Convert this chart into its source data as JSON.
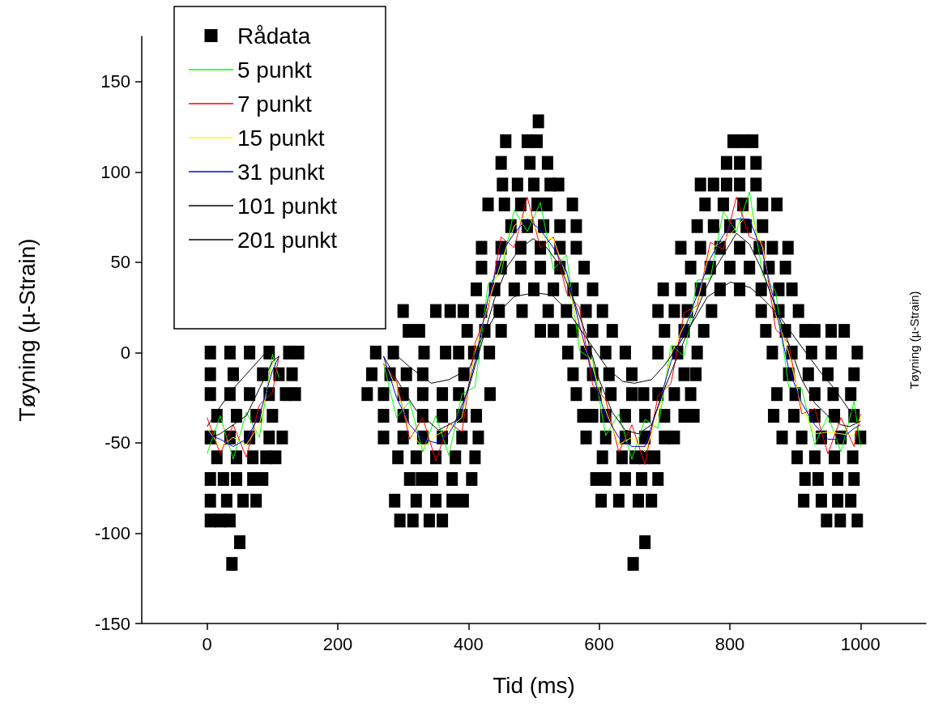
{
  "chart_data": {
    "type": "line",
    "xlabel": "Tid (ms)",
    "ylabel": "Tøyning (µ-Strain)",
    "y2label": "Tøyning (µ-Strain)",
    "xlim": [
      -100,
      1100
    ],
    "xticks": [
      0,
      200,
      400,
      600,
      800,
      1000
    ],
    "ylim": [
      -150,
      175
    ],
    "yticks": [
      -150,
      -100,
      -50,
      0,
      50,
      100,
      150
    ],
    "grid": false,
    "legend": "top left",
    "marker": "none",
    "series": [
      {
        "name": "Rådata",
        "type": "scatter",
        "marker": "square",
        "color": "#000000",
        "x": [
          507,
          457,
          490,
          505,
          805,
          820,
          835,
          450,
          494,
          521,
          795,
          815,
          840,
          452,
          475,
          500,
          525,
          538,
          755,
          775,
          795,
          815,
          840,
          430,
          455,
          480,
          505,
          520,
          559,
          762,
          790,
          820,
          850,
          872,
          465,
          490,
          515,
          540,
          565,
          750,
          775,
          800,
          825,
          850,
          420,
          450,
          480,
          510,
          540,
          565,
          725,
          755,
          785,
          815,
          845,
          865,
          889,
          420,
          450,
          480,
          510,
          540,
          577,
          740,
          770,
          800,
          830,
          860,
          885,
          412,
          440,
          470,
          500,
          530,
          560,
          590,
          698,
          725,
          755,
          785,
          815,
          848,
          875,
          895,
          300,
          350,
          372,
          392,
          420,
          447,
          482,
          522,
          550,
          580,
          605,
          690,
          715,
          735,
          772,
          848,
          875,
          905,
          308,
          325,
          398,
          425,
          450,
          510,
          530,
          560,
          590,
          620,
          700,
          730,
          760,
          855,
          885,
          915,
          930,
          955,
          975,
          5,
          35,
          65,
          95,
          125,
          140,
          258,
          285,
          332,
          365,
          385,
          408,
          432,
          552,
          580,
          610,
          640,
          690,
          720,
          750,
          865,
          895,
          925,
          955,
          995,
          5,
          40,
          85,
          110,
          130,
          252,
          280,
          305,
          330,
          393,
          560,
          590,
          615,
          650,
          730,
          748,
          890,
          920,
          950,
          990,
          5,
          35,
          65,
          95,
          120,
          135,
          245,
          270,
          300,
          330,
          360,
          385,
          433,
          565,
          595,
          618,
          650,
          668,
          690,
          715,
          740,
          872,
          900,
          930,
          958,
          985,
          15,
          45,
          75,
          100,
          270,
          300,
          330,
          360,
          390,
          412,
          575,
          590,
          610,
          640,
          670,
          700,
          730,
          745,
          867,
          898,
          930,
          960,
          990,
          5,
          35,
          65,
          95,
          115,
          270,
          300,
          330,
          360,
          390,
          415,
          580,
          610,
          640,
          670,
          700,
          715,
          880,
          910,
          940,
          970,
          1000,
          15,
          45,
          70,
          90,
          105,
          292,
          320,
          350,
          380,
          410,
          605,
          635,
          655,
          670,
          685,
          903,
          930,
          960,
          988,
          5,
          25,
          45,
          70,
          85,
          310,
          328,
          345,
          375,
          405,
          595,
          610,
          640,
          665,
          690,
          915,
          935,
          965,
          990,
          5,
          30,
          55,
          75,
          287,
          320,
          350,
          375,
          392,
          603,
          630,
          660,
          680,
          913,
          940,
          965,
          985,
          5,
          20,
          35,
          295,
          315,
          340,
          360,
          948,
          969,
          995,
          50,
          670,
          38,
          652
        ],
        "values": [
          128,
          117,
          117,
          117,
          117,
          117,
          117,
          105,
          105,
          105,
          105,
          105,
          105,
          93,
          93,
          93,
          93,
          93,
          93,
          93,
          93,
          93,
          93,
          82,
          82,
          82,
          82,
          82,
          82,
          82,
          82,
          82,
          82,
          82,
          70,
          70,
          70,
          70,
          70,
          70,
          70,
          70,
          70,
          70,
          58,
          58,
          58,
          58,
          58,
          58,
          58,
          58,
          58,
          58,
          58,
          58,
          58,
          47,
          47,
          47,
          47,
          47,
          47,
          47,
          47,
          47,
          47,
          47,
          47,
          35,
          35,
          35,
          35,
          35,
          35,
          35,
          35,
          35,
          35,
          35,
          35,
          35,
          35,
          35,
          23,
          23,
          23,
          23,
          23,
          23,
          23,
          23,
          23,
          23,
          23,
          23,
          23,
          23,
          23,
          23,
          23,
          23,
          12,
          12,
          12,
          12,
          12,
          12,
          12,
          12,
          12,
          12,
          12,
          12,
          12,
          12,
          12,
          12,
          12,
          12,
          12,
          0,
          0,
          0,
          0,
          0,
          0,
          0,
          0,
          0,
          0,
          0,
          0,
          0,
          0,
          0,
          0,
          0,
          0,
          0,
          0,
          0,
          0,
          0,
          0,
          0,
          -12,
          -12,
          -12,
          -12,
          -12,
          -12,
          -12,
          -12,
          -12,
          -12,
          -12,
          -12,
          -12,
          -12,
          -12,
          -12,
          -12,
          -12,
          -12,
          -12,
          -23,
          -23,
          -23,
          -23,
          -23,
          -23,
          -23,
          -23,
          -23,
          -23,
          -23,
          -23,
          -23,
          -23,
          -23,
          -23,
          -23,
          -23,
          -23,
          -23,
          -23,
          -23,
          -23,
          -23,
          -23,
          -23,
          -35,
          -35,
          -35,
          -35,
          -35,
          -35,
          -35,
          -35,
          -35,
          -35,
          -35,
          -35,
          -35,
          -35,
          -35,
          -35,
          -35,
          -35,
          -35,
          -35,
          -35,
          -35,
          -35,
          -47,
          -47,
          -47,
          -47,
          -47,
          -47,
          -47,
          -47,
          -47,
          -47,
          -47,
          -47,
          -47,
          -47,
          -47,
          -47,
          -47,
          -47,
          -47,
          -47,
          -47,
          -47,
          -58,
          -58,
          -58,
          -58,
          -58,
          -58,
          -58,
          -58,
          -58,
          -58,
          -58,
          -58,
          -58,
          -58,
          -58,
          -58,
          -58,
          -58,
          -58,
          -70,
          -70,
          -70,
          -70,
          -70,
          -70,
          -70,
          -70,
          -70,
          -70,
          -70,
          -70,
          -70,
          -70,
          -70,
          -70,
          -70,
          -70,
          -70,
          -82,
          -82,
          -82,
          -82,
          -82,
          -82,
          -82,
          -82,
          -82,
          -82,
          -82,
          -82,
          -82,
          -82,
          -82,
          -82,
          -82,
          -93,
          -93,
          -93,
          -93,
          -93,
          -93,
          -93,
          -93,
          -93,
          -93,
          -105,
          -105,
          -117,
          -117
        ]
      },
      {
        "name": "5 punkt",
        "color": "#00ff00",
        "x": [
          0,
          20,
          40,
          60,
          80,
          100,
          110,
          190,
          270,
          290,
          310,
          330,
          350,
          370,
          390,
          410,
          430,
          450,
          470,
          490,
          510,
          530,
          550,
          570,
          590,
          610,
          630,
          650,
          670,
          690,
          710,
          730,
          750,
          770,
          790,
          810,
          830,
          850,
          870,
          890,
          910,
          930,
          950,
          970,
          990,
          1000
        ],
        "values": [
          -56,
          -35,
          -59,
          -33,
          -47,
          -1,
          -14,
          null,
          -6,
          -36,
          -27,
          -55,
          -35,
          -57,
          -23,
          -19,
          38,
          44,
          79,
          67,
          83,
          46,
          54,
          1,
          -4,
          -46,
          -34,
          -59,
          -37,
          -42,
          4,
          -2,
          40,
          41,
          78,
          67,
          89,
          43,
          34,
          -19,
          -20,
          -51,
          -35,
          -55,
          -27,
          -52
        ]
      },
      {
        "name": "7 punkt",
        "color": "#ff0000",
        "x": [
          0,
          20,
          40,
          60,
          80,
          100,
          110,
          190,
          270,
          290,
          310,
          330,
          350,
          370,
          390,
          410,
          430,
          450,
          470,
          490,
          510,
          530,
          550,
          570,
          590,
          610,
          630,
          650,
          670,
          690,
          710,
          730,
          750,
          770,
          790,
          810,
          830,
          850,
          870,
          890,
          910,
          930,
          950,
          970,
          990,
          1000
        ],
        "values": [
          -36,
          -56,
          -40,
          -58,
          -29,
          -22,
          -2,
          null,
          -6,
          -16,
          -48,
          -36,
          -60,
          -39,
          -44,
          5,
          24,
          64,
          58,
          86,
          58,
          64,
          33,
          25,
          -18,
          -26,
          -55,
          -40,
          -62,
          -24,
          -17,
          22,
          26,
          61,
          57,
          86,
          64,
          61,
          13,
          5,
          -34,
          -31,
          -56,
          -36,
          -52,
          -34
        ]
      },
      {
        "name": "15 punkt",
        "color": "#ffff00",
        "x": [
          0,
          20,
          40,
          60,
          80,
          100,
          110,
          190,
          270,
          290,
          310,
          330,
          350,
          370,
          390,
          410,
          430,
          450,
          470,
          490,
          510,
          530,
          550,
          570,
          590,
          610,
          630,
          650,
          670,
          690,
          710,
          730,
          750,
          770,
          790,
          810,
          830,
          850,
          870,
          890,
          910,
          930,
          950,
          970,
          990,
          1000
        ],
        "values": [
          -42,
          -52,
          -47,
          -51,
          -40,
          -6,
          -3,
          null,
          -4,
          -20,
          -43,
          -53,
          -46,
          -42,
          -36,
          0,
          27,
          50,
          70,
          77,
          64,
          63,
          42,
          10,
          -8,
          -32,
          -51,
          -47,
          -55,
          -35,
          -1,
          15,
          28,
          57,
          62,
          69,
          78,
          58,
          21,
          0,
          -31,
          -45,
          -44,
          -45,
          -46,
          -35
        ]
      },
      {
        "name": "31 punkt",
        "color": "#0000ff",
        "x": [
          0,
          20,
          40,
          60,
          80,
          100,
          110,
          190,
          270,
          290,
          310,
          330,
          350,
          370,
          390,
          410,
          430,
          450,
          470,
          490,
          510,
          530,
          550,
          570,
          590,
          610,
          630,
          650,
          670,
          690,
          710,
          730,
          750,
          770,
          790,
          810,
          830,
          850,
          870,
          890,
          910,
          930,
          950,
          970,
          990,
          1000
        ],
        "values": [
          -45,
          -48,
          -52,
          -48,
          -35,
          -10,
          -2,
          null,
          -2,
          -25,
          -40,
          -48,
          -50,
          -45,
          -32,
          -5,
          30,
          55,
          66,
          74,
          68,
          58,
          45,
          15,
          -12,
          -35,
          -47,
          -52,
          -52,
          -30,
          -5,
          12,
          32,
          52,
          65,
          74,
          74,
          55,
          25,
          -9,
          -28,
          -40,
          -48,
          -48,
          -42,
          -40
        ]
      },
      {
        "name": "101 punkt",
        "color": "#000000",
        "x": [
          0,
          20,
          40,
          60,
          80,
          100,
          110,
          190,
          270,
          290,
          320,
          354,
          380,
          400,
          420,
          440,
          460,
          480,
          499,
          520,
          540,
          560,
          580,
          600,
          620,
          640,
          660,
          680,
          700,
          720,
          740,
          760,
          780,
          800,
          810,
          830,
          850,
          870,
          890,
          910,
          930,
          950,
          970,
          983,
          1000
        ],
        "values": [
          -48,
          -45,
          -40,
          -35,
          -20,
          -5,
          -2,
          null,
          -2,
          -15,
          -32,
          -43,
          -38,
          -20,
          5,
          30,
          48,
          58,
          63,
          58,
          48,
          30,
          10,
          -15,
          -33,
          -43,
          -45,
          -40,
          -20,
          -2,
          15,
          33,
          48,
          60,
          66,
          60,
          45,
          25,
          5,
          -15,
          -28,
          -35,
          -40,
          -41,
          -38
        ]
      },
      {
        "name": "201 punkt",
        "color": "#000000",
        "x": [
          0,
          20,
          40,
          60,
          80,
          90,
          190,
          285,
          310,
          343,
          370,
          401,
          419,
          440,
          470,
          500,
          527,
          550,
          571,
          592,
          613,
          636,
          654,
          680,
          700,
          723,
          745,
          766,
          801,
          831,
          850,
          874,
          900,
          939,
          960,
          983,
          996
        ],
        "values": [
          -41,
          -30,
          -20,
          -12,
          -4,
          0,
          null,
          0,
          -8,
          -17,
          -15,
          -9,
          7,
          20,
          31,
          33,
          32,
          24,
          13,
          2,
          -9,
          -16,
          -17,
          -15,
          -7,
          5,
          18,
          31,
          39,
          36,
          30,
          21,
          8,
          -11,
          -20,
          -32,
          -35
        ]
      }
    ]
  }
}
